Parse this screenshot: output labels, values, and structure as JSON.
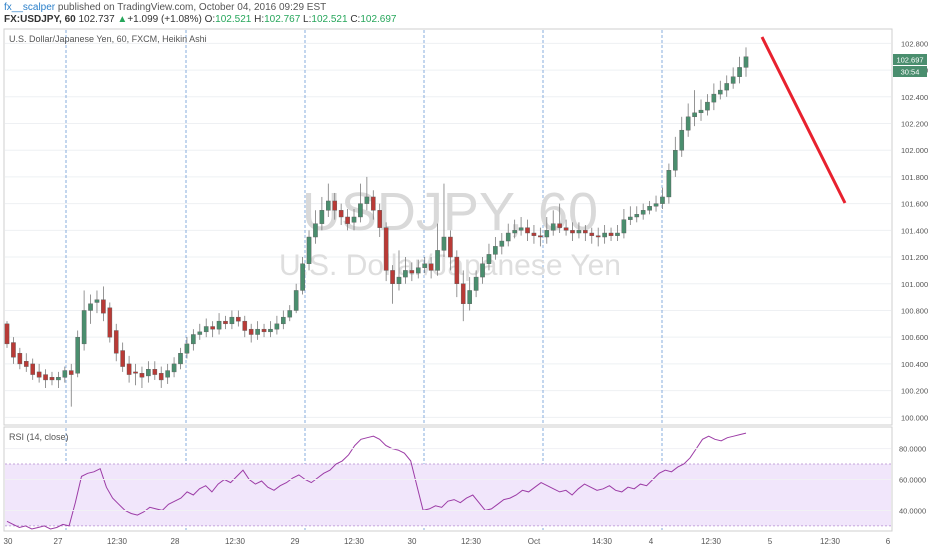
{
  "header": {
    "line1_user": "fx__scalper",
    "line1_rest": " published on TradingView.com, October 04, 2016 09:29 EST",
    "symbol": "FX:USDJPY, 60",
    "last": "102.737",
    "arrow": "▲",
    "change": "+1.099 (+1.08%)",
    "o_label": "O:",
    "o": "102.521",
    "h_label": "H:",
    "h": "102.767",
    "l_label": "L:",
    "l": "102.521",
    "c_label": "C:",
    "c": "102.697"
  },
  "chart_data": [
    {
      "type": "candlestick",
      "title": "U.S. Dollar/Japanese Yen, 60, FXCM, Heikin Ashi",
      "watermark_symbol": "USDJPY, 60",
      "watermark_name": "U.S. Dollar/Japanese Yen",
      "ylim": [
        99.95,
        102.9
      ],
      "y_ticks": [
        "100.000",
        "100.200",
        "100.400",
        "100.600",
        "100.800",
        "101.000",
        "101.200",
        "101.400",
        "101.600",
        "101.800",
        "102.000",
        "102.200",
        "102.400",
        "102.600",
        "102.800"
      ],
      "x_ticks": [
        "30",
        "27",
        "12:30",
        "28",
        "12:30",
        "29",
        "12:30",
        "30",
        "12:30",
        "Oct",
        "14:30",
        "4",
        "12:30",
        "5",
        "12:30",
        "6"
      ],
      "price_label": "102.697",
      "countdown_label": "30:54",
      "candles": [
        [
          100.7,
          100.55,
          100.72,
          100.52
        ],
        [
          100.56,
          100.45,
          100.6,
          100.4
        ],
        [
          100.48,
          100.4,
          100.52,
          100.36
        ],
        [
          100.42,
          100.38,
          100.48,
          100.34
        ],
        [
          100.4,
          100.32,
          100.44,
          100.28
        ],
        [
          100.34,
          100.3,
          100.4,
          100.26
        ],
        [
          100.32,
          100.28,
          100.36,
          100.22
        ],
        [
          100.3,
          100.28,
          100.34,
          100.24
        ],
        [
          100.28,
          100.3,
          100.34,
          100.22
        ],
        [
          100.3,
          100.35,
          100.38,
          100.26
        ],
        [
          100.35,
          100.32,
          100.4,
          100.08
        ],
        [
          100.33,
          100.6,
          100.65,
          100.3
        ],
        [
          100.55,
          100.8,
          100.95,
          100.5
        ],
        [
          100.8,
          100.85,
          100.92,
          100.7
        ],
        [
          100.86,
          100.88,
          100.95,
          100.78
        ],
        [
          100.88,
          100.78,
          100.98,
          100.72
        ],
        [
          100.82,
          100.6,
          100.86,
          100.56
        ],
        [
          100.65,
          100.48,
          100.7,
          100.42
        ],
        [
          100.5,
          100.38,
          100.56,
          100.34
        ],
        [
          100.4,
          100.32,
          100.46,
          100.26
        ],
        [
          100.34,
          100.33,
          100.4,
          100.24
        ],
        [
          100.33,
          100.3,
          100.38,
          100.22
        ],
        [
          100.31,
          100.36,
          100.42,
          100.26
        ],
        [
          100.36,
          100.32,
          100.42,
          100.28
        ],
        [
          100.33,
          100.28,
          100.38,
          100.22
        ],
        [
          100.3,
          100.35,
          100.4,
          100.25
        ],
        [
          100.34,
          100.4,
          100.45,
          100.3
        ],
        [
          100.4,
          100.48,
          100.52,
          100.36
        ],
        [
          100.48,
          100.55,
          100.6,
          100.44
        ],
        [
          100.55,
          100.62,
          100.66,
          100.5
        ],
        [
          100.62,
          100.64,
          100.7,
          100.58
        ],
        [
          100.64,
          100.68,
          100.74,
          100.6
        ],
        [
          100.68,
          100.66,
          100.72,
          100.6
        ],
        [
          100.66,
          100.72,
          100.78,
          100.62
        ],
        [
          100.72,
          100.7,
          100.76,
          100.66
        ],
        [
          100.7,
          100.75,
          100.8,
          100.66
        ],
        [
          100.75,
          100.72,
          100.8,
          100.68
        ],
        [
          100.72,
          100.65,
          100.76,
          100.6
        ],
        [
          100.66,
          100.62,
          100.7,
          100.56
        ],
        [
          100.62,
          100.66,
          100.72,
          100.58
        ],
        [
          100.66,
          100.64,
          100.7,
          100.6
        ],
        [
          100.64,
          100.66,
          100.72,
          100.6
        ],
        [
          100.66,
          100.7,
          100.76,
          100.62
        ],
        [
          100.7,
          100.75,
          100.8,
          100.66
        ],
        [
          100.75,
          100.8,
          100.84,
          100.72
        ],
        [
          100.8,
          100.95,
          101.0,
          100.78
        ],
        [
          100.95,
          101.15,
          101.2,
          100.92
        ],
        [
          101.15,
          101.35,
          101.4,
          101.1
        ],
        [
          101.35,
          101.45,
          101.55,
          101.3
        ],
        [
          101.45,
          101.55,
          101.65,
          101.4
        ],
        [
          101.55,
          101.62,
          101.75,
          101.5
        ],
        [
          101.62,
          101.55,
          101.68,
          101.48
        ],
        [
          101.55,
          101.5,
          101.6,
          101.44
        ],
        [
          101.5,
          101.45,
          101.56,
          101.4
        ],
        [
          101.46,
          101.5,
          101.56,
          101.4
        ],
        [
          101.5,
          101.6,
          101.75,
          101.46
        ],
        [
          101.6,
          101.65,
          101.8,
          101.55
        ],
        [
          101.65,
          101.55,
          101.7,
          101.48
        ],
        [
          101.55,
          101.42,
          101.6,
          101.35
        ],
        [
          101.42,
          101.1,
          101.46,
          101.02
        ],
        [
          101.1,
          101.0,
          101.14,
          100.85
        ],
        [
          101.0,
          101.05,
          101.25,
          100.95
        ],
        [
          101.05,
          101.1,
          101.2,
          101.0
        ],
        [
          101.1,
          101.08,
          101.16,
          101.02
        ],
        [
          101.08,
          101.12,
          101.18,
          101.04
        ],
        [
          101.12,
          101.15,
          101.2,
          101.08
        ],
        [
          101.15,
          101.1,
          101.2,
          101.04
        ],
        [
          101.1,
          101.25,
          101.45,
          101.06
        ],
        [
          101.25,
          101.35,
          101.75,
          101.2
        ],
        [
          101.35,
          101.2,
          101.4,
          101.1
        ],
        [
          101.2,
          101.0,
          101.25,
          100.9
        ],
        [
          101.0,
          100.85,
          101.1,
          100.72
        ],
        [
          100.85,
          100.95,
          101.05,
          100.8
        ],
        [
          100.95,
          101.05,
          101.1,
          100.9
        ],
        [
          101.05,
          101.15,
          101.2,
          101.0
        ],
        [
          101.15,
          101.22,
          101.3,
          101.1
        ],
        [
          101.22,
          101.28,
          101.35,
          101.18
        ],
        [
          101.28,
          101.32,
          101.38,
          101.22
        ],
        [
          101.32,
          101.38,
          101.45,
          101.28
        ],
        [
          101.38,
          101.4,
          101.48,
          101.34
        ],
        [
          101.4,
          101.42,
          101.5,
          101.36
        ],
        [
          101.42,
          101.38,
          101.48,
          101.32
        ],
        [
          101.38,
          101.36,
          101.44,
          101.3
        ],
        [
          101.36,
          101.35,
          101.42,
          101.28
        ],
        [
          101.35,
          101.4,
          101.5,
          101.3
        ],
        [
          101.4,
          101.45,
          101.55,
          101.36
        ],
        [
          101.45,
          101.42,
          101.6,
          101.38
        ],
        [
          101.42,
          101.4,
          101.48,
          101.36
        ],
        [
          101.4,
          101.38,
          101.46,
          101.32
        ],
        [
          101.38,
          101.4,
          101.46,
          101.34
        ],
        [
          101.4,
          101.38,
          101.44,
          101.32
        ],
        [
          101.38,
          101.36,
          101.42,
          101.3
        ],
        [
          101.36,
          101.35,
          101.42,
          101.28
        ],
        [
          101.35,
          101.38,
          101.44,
          101.3
        ],
        [
          101.38,
          101.36,
          101.42,
          101.32
        ],
        [
          101.36,
          101.38,
          101.44,
          101.32
        ],
        [
          101.38,
          101.48,
          101.56,
          101.34
        ],
        [
          101.48,
          101.5,
          101.58,
          101.44
        ],
        [
          101.5,
          101.52,
          101.58,
          101.46
        ],
        [
          101.52,
          101.55,
          101.6,
          101.48
        ],
        [
          101.55,
          101.58,
          101.62,
          101.52
        ],
        [
          101.58,
          101.6,
          101.66,
          101.54
        ],
        [
          101.6,
          101.65,
          101.72,
          101.56
        ],
        [
          101.65,
          101.85,
          101.9,
          101.6
        ],
        [
          101.85,
          102.0,
          102.1,
          101.8
        ],
        [
          102.0,
          102.15,
          102.25,
          101.95
        ],
        [
          102.15,
          102.25,
          102.35,
          102.1
        ],
        [
          102.25,
          102.28,
          102.45,
          102.18
        ],
        [
          102.28,
          102.3,
          102.38,
          102.22
        ],
        [
          102.3,
          102.36,
          102.42,
          102.26
        ],
        [
          102.36,
          102.42,
          102.5,
          102.3
        ],
        [
          102.42,
          102.45,
          102.52,
          102.38
        ],
        [
          102.45,
          102.5,
          102.56,
          102.4
        ],
        [
          102.5,
          102.55,
          102.62,
          102.46
        ],
        [
          102.55,
          102.62,
          102.7,
          102.5
        ],
        [
          102.62,
          102.7,
          102.77,
          102.55
        ]
      ]
    },
    {
      "type": "line",
      "title": "RSI (14, close)",
      "ylim": [
        28,
        92
      ],
      "band": [
        30,
        70
      ],
      "y_ticks": [
        "40.0000",
        "60.0000",
        "80.0000"
      ],
      "values": [
        33,
        31,
        29,
        30,
        28,
        29,
        30,
        28,
        29,
        31,
        30,
        45,
        62,
        64,
        65,
        67,
        55,
        48,
        44,
        40,
        38,
        37,
        39,
        42,
        41,
        40,
        44,
        46,
        48,
        52,
        50,
        54,
        56,
        52,
        57,
        60,
        58,
        62,
        66,
        60,
        57,
        59,
        55,
        53,
        56,
        58,
        61,
        63,
        60,
        58,
        61,
        64,
        66,
        70,
        72,
        76,
        82,
        86,
        87,
        88,
        86,
        82,
        80,
        79,
        77,
        72,
        56,
        40,
        41,
        43,
        42,
        46,
        47,
        45,
        48,
        50,
        45,
        40,
        41,
        44,
        47,
        48,
        50,
        53,
        52,
        55,
        58,
        56,
        54,
        52,
        53,
        50,
        54,
        57,
        55,
        53,
        54,
        56,
        53,
        52,
        55,
        54,
        57,
        56,
        60,
        64,
        66,
        65,
        68,
        70,
        74,
        80,
        86,
        88,
        86,
        85,
        87,
        88,
        89,
        90
      ]
    }
  ],
  "annotation_color": "#e8212e",
  "colors": {
    "up": "#4a8e6e",
    "down": "#b93a36",
    "rsi": "#9c3ca6",
    "band": "#f1e6fb"
  }
}
